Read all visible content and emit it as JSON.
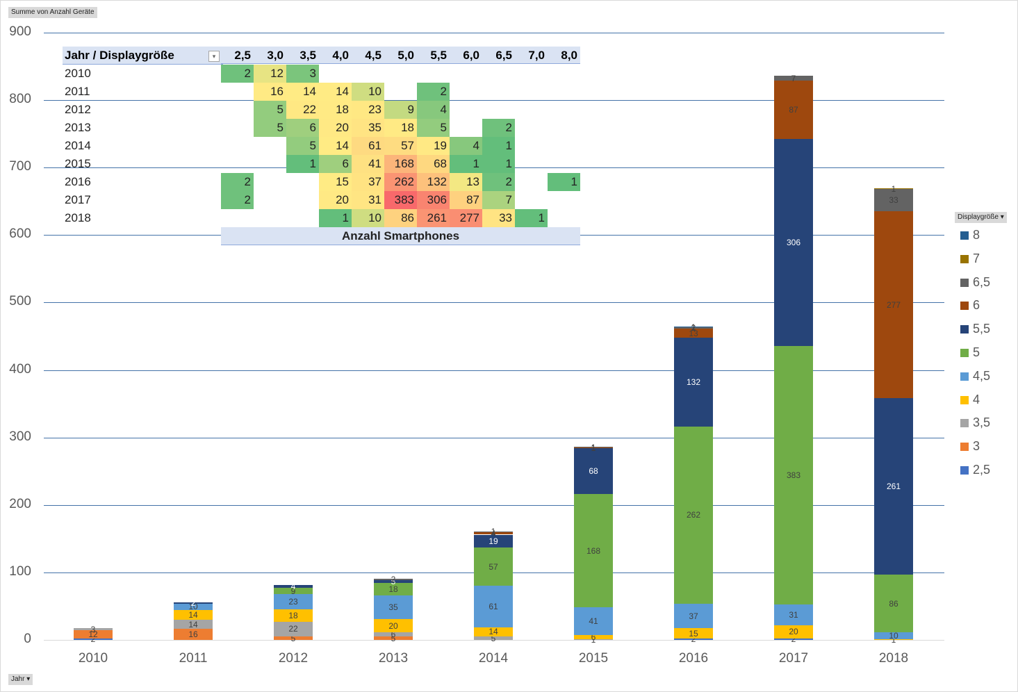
{
  "field_buttons": {
    "values": "Summe  von Anzahl Geräte",
    "axis": "Jahr",
    "legend": "Displaygröße"
  },
  "pivot": {
    "corner_label": "Jahr / Displaygröße",
    "columns": [
      "2,5",
      "3,0",
      "3,5",
      "4,0",
      "4,5",
      "5,0",
      "5,5",
      "6,0",
      "6,5",
      "7,0",
      "8,0"
    ],
    "footer": "Anzahl Smartphones",
    "rows": [
      {
        "year": "2010",
        "cells": [
          2,
          12,
          3,
          null,
          null,
          null,
          null,
          null,
          null,
          null,
          null
        ]
      },
      {
        "year": "2011",
        "cells": [
          null,
          16,
          14,
          14,
          10,
          null,
          2,
          null,
          null,
          null,
          null
        ]
      },
      {
        "year": "2012",
        "cells": [
          null,
          5,
          22,
          18,
          23,
          9,
          4,
          null,
          null,
          null,
          null
        ]
      },
      {
        "year": "2013",
        "cells": [
          null,
          5,
          6,
          20,
          35,
          18,
          5,
          null,
          2,
          null,
          null
        ]
      },
      {
        "year": "2014",
        "cells": [
          null,
          null,
          5,
          14,
          61,
          57,
          19,
          4,
          1,
          null,
          null
        ]
      },
      {
        "year": "2015",
        "cells": [
          null,
          null,
          1,
          6,
          41,
          168,
          68,
          1,
          1,
          null,
          null
        ]
      },
      {
        "year": "2016",
        "cells": [
          2,
          null,
          null,
          15,
          37,
          262,
          132,
          13,
          2,
          null,
          1
        ]
      },
      {
        "year": "2017",
        "cells": [
          2,
          null,
          null,
          20,
          31,
          383,
          306,
          87,
          7,
          null,
          null
        ]
      },
      {
        "year": "2018",
        "cells": [
          null,
          null,
          null,
          1,
          10,
          86,
          261,
          277,
          33,
          1,
          null
        ]
      }
    ]
  },
  "chart_data": {
    "type": "bar",
    "stacked": true,
    "title": "",
    "xlabel": "",
    "ylabel": "",
    "ylim": [
      0,
      900
    ],
    "yticks": [
      0,
      100,
      200,
      300,
      400,
      500,
      600,
      700,
      800,
      900
    ],
    "grid": true,
    "legend_position": "right",
    "legend_title": "Displaygröße",
    "categories": [
      "2010",
      "2011",
      "2012",
      "2013",
      "2014",
      "2015",
      "2016",
      "2017",
      "2018"
    ],
    "series": [
      {
        "name": "2,5",
        "color": "#4472c4",
        "values": [
          2,
          0,
          0,
          0,
          0,
          0,
          2,
          2,
          0
        ]
      },
      {
        "name": "3",
        "color": "#ed7d31",
        "values": [
          12,
          16,
          5,
          5,
          0,
          0,
          0,
          0,
          0
        ]
      },
      {
        "name": "3,5",
        "color": "#a5a5a5",
        "values": [
          3,
          14,
          22,
          6,
          5,
          1,
          0,
          0,
          0
        ]
      },
      {
        "name": "4",
        "color": "#ffc000",
        "values": [
          0,
          14,
          18,
          20,
          14,
          6,
          15,
          20,
          1
        ]
      },
      {
        "name": "4,5",
        "color": "#5b9bd5",
        "values": [
          0,
          10,
          23,
          35,
          61,
          41,
          37,
          31,
          10
        ]
      },
      {
        "name": "5",
        "color": "#70ad47",
        "values": [
          0,
          0,
          9,
          18,
          57,
          168,
          262,
          383,
          86
        ]
      },
      {
        "name": "5,5",
        "color": "#264478",
        "values": [
          0,
          2,
          4,
          5,
          19,
          68,
          132,
          306,
          261
        ]
      },
      {
        "name": "6",
        "color": "#9e480e",
        "values": [
          0,
          0,
          0,
          0,
          4,
          1,
          13,
          87,
          277
        ]
      },
      {
        "name": "6,5",
        "color": "#636363",
        "values": [
          0,
          0,
          0,
          2,
          1,
          1,
          2,
          7,
          33
        ]
      },
      {
        "name": "7",
        "color": "#997300",
        "values": [
          0,
          0,
          0,
          0,
          0,
          0,
          0,
          0,
          1
        ]
      },
      {
        "name": "8",
        "color": "#255e91",
        "values": [
          0,
          0,
          0,
          0,
          0,
          0,
          1,
          0,
          0
        ]
      }
    ]
  }
}
